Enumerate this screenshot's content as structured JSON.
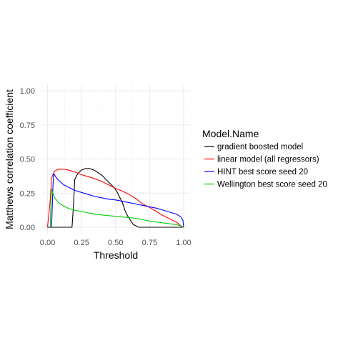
{
  "chart_data": {
    "type": "line",
    "title": "",
    "xlabel": "Threshold",
    "ylabel": "Matthews correlation coefficient",
    "xlim": [
      0,
      1
    ],
    "ylim": [
      0,
      1
    ],
    "x_ticks": [
      0.0,
      0.25,
      0.5,
      0.75,
      1.0
    ],
    "x_tick_labels": [
      "0.00",
      "0.25",
      "0.50",
      "0.75",
      "1.00"
    ],
    "y_ticks": [
      0.0,
      0.25,
      0.5,
      0.75,
      1.0
    ],
    "y_tick_labels": [
      "0.00",
      "0.25",
      "0.50",
      "0.75",
      "1.00"
    ],
    "grid": true,
    "legend": {
      "title": "Model.Name",
      "placement": "right"
    },
    "series": [
      {
        "name": "gradient boosted model",
        "color": "#000000",
        "points": [
          [
            0.0,
            0.0
          ],
          [
            0.18,
            0.0
          ],
          [
            0.19,
            0.15
          ],
          [
            0.2,
            0.35
          ],
          [
            0.22,
            0.39
          ],
          [
            0.25,
            0.42
          ],
          [
            0.28,
            0.43
          ],
          [
            0.31,
            0.43
          ],
          [
            0.34,
            0.42
          ],
          [
            0.37,
            0.4
          ],
          [
            0.4,
            0.38
          ],
          [
            0.43,
            0.35
          ],
          [
            0.46,
            0.32
          ],
          [
            0.49,
            0.29
          ],
          [
            0.51,
            0.26
          ],
          [
            0.53,
            0.22
          ],
          [
            0.55,
            0.18
          ],
          [
            0.57,
            0.12
          ],
          [
            0.59,
            0.08
          ],
          [
            0.61,
            0.05
          ],
          [
            0.63,
            0.02
          ],
          [
            0.65,
            0.01
          ],
          [
            0.67,
            0.0
          ],
          [
            1.0,
            0.0
          ]
        ]
      },
      {
        "name": "linear model (all regressors)",
        "color": "#ff0000",
        "points": [
          [
            0.0,
            0.0
          ],
          [
            0.02,
            0.2
          ],
          [
            0.03,
            0.36
          ],
          [
            0.05,
            0.41
          ],
          [
            0.08,
            0.425
          ],
          [
            0.12,
            0.425
          ],
          [
            0.15,
            0.42
          ],
          [
            0.2,
            0.405
          ],
          [
            0.25,
            0.385
          ],
          [
            0.3,
            0.37
          ],
          [
            0.35,
            0.355
          ],
          [
            0.4,
            0.335
          ],
          [
            0.45,
            0.31
          ],
          [
            0.5,
            0.285
          ],
          [
            0.55,
            0.265
          ],
          [
            0.6,
            0.24
          ],
          [
            0.65,
            0.21
          ],
          [
            0.7,
            0.17
          ],
          [
            0.75,
            0.145
          ],
          [
            0.8,
            0.115
          ],
          [
            0.85,
            0.085
          ],
          [
            0.9,
            0.06
          ],
          [
            0.95,
            0.035
          ],
          [
            0.98,
            0.01
          ],
          [
            1.0,
            0.0
          ]
        ]
      },
      {
        "name": "HINT best score seed 20",
        "color": "#0000ff",
        "points": [
          [
            0.03,
            0.0
          ],
          [
            0.04,
            0.3
          ],
          [
            0.045,
            0.395
          ],
          [
            0.06,
            0.37
          ],
          [
            0.08,
            0.345
          ],
          [
            0.12,
            0.31
          ],
          [
            0.16,
            0.29
          ],
          [
            0.2,
            0.27
          ],
          [
            0.25,
            0.255
          ],
          [
            0.3,
            0.24
          ],
          [
            0.35,
            0.225
          ],
          [
            0.4,
            0.215
          ],
          [
            0.45,
            0.205
          ],
          [
            0.5,
            0.2
          ],
          [
            0.55,
            0.19
          ],
          [
            0.6,
            0.18
          ],
          [
            0.65,
            0.17
          ],
          [
            0.7,
            0.16
          ],
          [
            0.75,
            0.15
          ],
          [
            0.8,
            0.14
          ],
          [
            0.85,
            0.125
          ],
          [
            0.9,
            0.11
          ],
          [
            0.95,
            0.095
          ],
          [
            0.98,
            0.075
          ],
          [
            0.995,
            0.05
          ],
          [
            1.0,
            0.0
          ]
        ]
      },
      {
        "name": "Wellington best score seed 20",
        "color": "#00cc00",
        "points": [
          [
            0.02,
            0.0
          ],
          [
            0.025,
            0.2
          ],
          [
            0.03,
            0.28
          ],
          [
            0.05,
            0.22
          ],
          [
            0.08,
            0.18
          ],
          [
            0.12,
            0.155
          ],
          [
            0.16,
            0.135
          ],
          [
            0.2,
            0.125
          ],
          [
            0.25,
            0.115
          ],
          [
            0.3,
            0.105
          ],
          [
            0.35,
            0.095
          ],
          [
            0.4,
            0.09
          ],
          [
            0.45,
            0.085
          ],
          [
            0.5,
            0.08
          ],
          [
            0.55,
            0.075
          ],
          [
            0.6,
            0.07
          ],
          [
            0.65,
            0.065
          ],
          [
            0.7,
            0.055
          ],
          [
            0.75,
            0.045
          ],
          [
            0.8,
            0.038
          ],
          [
            0.85,
            0.032
          ],
          [
            0.9,
            0.025
          ],
          [
            0.95,
            0.018
          ],
          [
            0.98,
            0.01
          ],
          [
            1.0,
            0.0
          ]
        ]
      }
    ]
  }
}
